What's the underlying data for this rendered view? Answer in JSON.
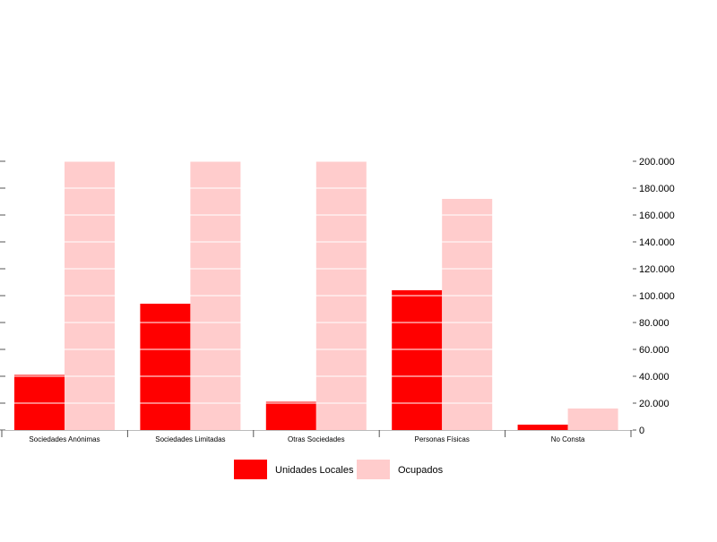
{
  "chart_data": {
    "type": "bar",
    "categories": [
      "Sociedades Anónimas",
      "Sociedades Limitadas",
      "Otras Sociedades",
      "Personas Físicas",
      "No Consta"
    ],
    "series": [
      {
        "name": "Unidades Locales",
        "color": "#ff0000",
        "values": [
          41000,
          94000,
          21000,
          104000,
          4000
        ]
      },
      {
        "name": "Ocupados",
        "color": "#ffcccc",
        "values": [
          200000,
          200000,
          200000,
          172000,
          16000
        ]
      }
    ],
    "ylim": [
      0,
      200000
    ],
    "yticks": [
      0,
      20000,
      40000,
      60000,
      80000,
      100000,
      120000,
      140000,
      160000,
      180000,
      200000
    ],
    "ytick_labels": [
      "0",
      "20.000",
      "40.000",
      "60.000",
      "80.000",
      "100.000",
      "120.000",
      "140.000",
      "160.000",
      "180.000",
      "200.000"
    ],
    "title": "",
    "xlabel": "",
    "ylabel": "",
    "grid": true,
    "legend_position": "bottom"
  }
}
